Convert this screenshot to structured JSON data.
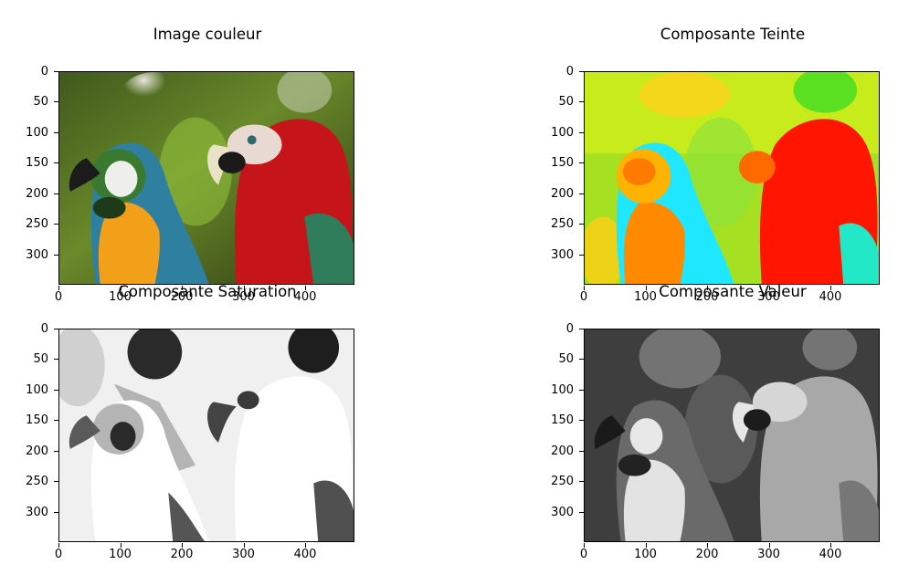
{
  "panels": [
    {
      "title": "Image couleur",
      "kind": "color"
    },
    {
      "title": "Composante Teinte",
      "kind": "hue"
    },
    {
      "title": "Composante Saturation",
      "kind": "saturation"
    },
    {
      "title": "Composante Valeur",
      "kind": "value"
    }
  ],
  "axes": {
    "y_ticks": [
      "0",
      "50",
      "100",
      "150",
      "200",
      "250",
      "300"
    ],
    "x_ticks": [
      "0",
      "100",
      "200",
      "300",
      "400"
    ]
  },
  "image_content": "two parrots",
  "colors": {
    "background": "#ffffff",
    "axis": "#000000"
  }
}
